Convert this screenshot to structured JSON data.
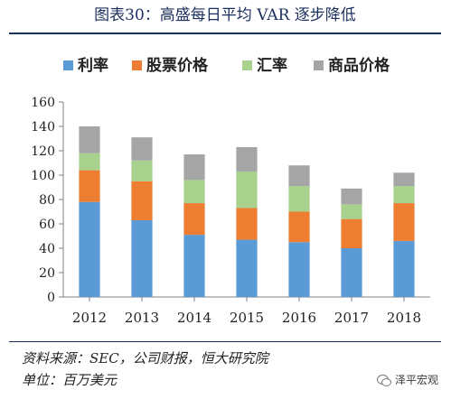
{
  "header": {
    "title": "图表30：高盛每日平均 VAR 逐步降低"
  },
  "footer": {
    "source": "资料来源：SEC，公司财报，恒大研究院",
    "unit": "单位：百万美元",
    "watermark": "泽平宏观"
  },
  "colors": {
    "利率": "#5b9bd5",
    "股票价格": "#ed7d31",
    "汇率": "#a9d18e",
    "商品价格": "#a5a5a5"
  },
  "chart_data": {
    "type": "bar",
    "stacked": true,
    "title": "",
    "xlabel": "",
    "ylabel": "",
    "categories": [
      "2012",
      "2013",
      "2014",
      "2015",
      "2016",
      "2017",
      "2018"
    ],
    "series": [
      {
        "name": "利率",
        "values": [
          78,
          63,
          51,
          47,
          45,
          40,
          46
        ]
      },
      {
        "name": "股票价格",
        "values": [
          26,
          32,
          26,
          26,
          25,
          24,
          31
        ]
      },
      {
        "name": "汇率",
        "values": [
          14,
          17,
          19,
          30,
          21,
          12,
          14
        ]
      },
      {
        "name": "商品价格",
        "values": [
          22,
          19,
          21,
          20,
          17,
          13,
          11
        ]
      }
    ],
    "ylim": [
      0,
      160
    ],
    "yticks": [
      0,
      20,
      40,
      60,
      80,
      100,
      120,
      140,
      160
    ],
    "grid": false,
    "legend": "top"
  }
}
